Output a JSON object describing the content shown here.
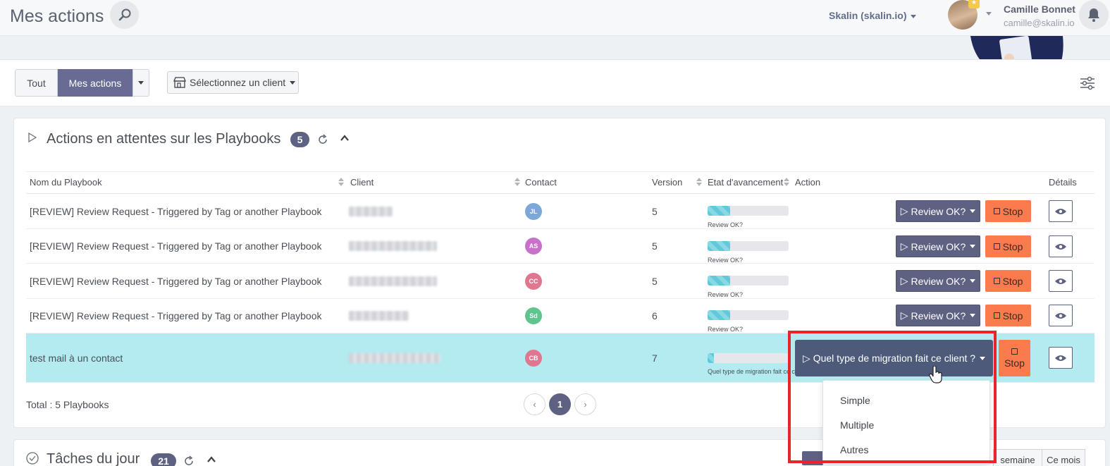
{
  "header": {
    "title": "Mes actions",
    "org": "Skalin (skalin.io)",
    "user_name": "Camille Bonnet",
    "user_email": "camille@skalin.io"
  },
  "filters": {
    "all": "Tout",
    "mine": "Mes actions",
    "client_select": "Sélectionnez un client"
  },
  "playbooks": {
    "title": "Actions en attentes sur les Playbooks",
    "count": "5",
    "columns": [
      "Nom du Playbook",
      "Client",
      "Contact",
      "Version",
      "Etat d'avancement",
      "Action",
      "Détails"
    ],
    "rows": [
      {
        "name": "[REVIEW] Review Request - Triggered by Tag or another Playbook",
        "contact": "JL",
        "contact_color": "#7ba7d9",
        "version": "5",
        "progress": 0.28,
        "step": "Review OK?",
        "action": "Review OK?",
        "stop": "Stop"
      },
      {
        "name": "[REVIEW] Review Request - Triggered by Tag or another Playbook",
        "contact": "AS",
        "contact_color": "#c971c9",
        "version": "5",
        "progress": 0.28,
        "step": "Review OK?",
        "action": "Review OK?",
        "stop": "Stop"
      },
      {
        "name": "[REVIEW] Review Request - Triggered by Tag or another Playbook",
        "contact": "CC",
        "contact_color": "#e0768f",
        "version": "5",
        "progress": 0.28,
        "step": "Review OK?",
        "action": "Review OK?",
        "stop": "Stop"
      },
      {
        "name": "[REVIEW] Review Request - Triggered by Tag or another Playbook",
        "contact": "Sd",
        "contact_color": "#5fc48e",
        "version": "6",
        "progress": 0.28,
        "step": "Review OK?",
        "action": "Review OK?",
        "stop": "Stop"
      },
      {
        "name": "test mail à un contact",
        "contact": "CB",
        "contact_color": "#e0768f",
        "version": "7",
        "progress": 0.08,
        "step": "Quel type de migration fait ce client ?",
        "action": "Quel type de migration fait ce client ?",
        "stop": "Stop"
      }
    ],
    "total": "Total : 5 Playbooks",
    "pagination": {
      "prev": "‹",
      "current": "1",
      "next": "›"
    },
    "dropdown_options": [
      "Simple",
      "Multiple",
      "Autres"
    ]
  },
  "tasks": {
    "title": "Tâches du jour",
    "count": "21",
    "week": "semaine",
    "month": "Ce mois"
  }
}
